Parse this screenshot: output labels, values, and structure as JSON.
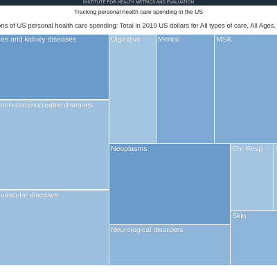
{
  "header": {
    "org_name": "INSTITUTE FOR HEALTH METRICS AND EVALUATION",
    "title": "Tracking personal health care spending in the US",
    "subtitle": "ons of US personal health care spending: Total in 2019 US dollars for All types of care, All Ages, All P"
  },
  "treemap": {
    "tiles": [
      {
        "label": "es and kidney diseases",
        "color": "#6b9bcb"
      },
      {
        "label": "non-communicable diseases",
        "color": "#9dc0df"
      },
      {
        "label": "vascular diseases",
        "color": "#9dc0df"
      },
      {
        "label": "Digestive",
        "color": "#a3c4e1"
      },
      {
        "label": "Mental",
        "color": "#7ca8d3"
      },
      {
        "label": "MSK",
        "color": "#7fabd5"
      },
      {
        "label": "Neoplasms",
        "color": "#6b9bcb"
      },
      {
        "label": "Neurological disorders",
        "color": "#8eb6db"
      },
      {
        "label": "Chr Resp",
        "color": "#a3c4e1"
      },
      {
        "label": "S",
        "color": "#9fc2e0"
      },
      {
        "label": "Skin",
        "color": "#8eb6db"
      }
    ]
  }
}
